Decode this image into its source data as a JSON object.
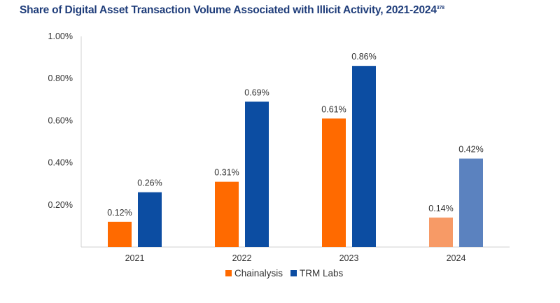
{
  "chart_data": {
    "type": "bar",
    "title": "Share of Digital Asset Transaction Volume Associated with Illicit Activity, 2021-2024",
    "title_footnote": "378",
    "categories": [
      "2021",
      "2022",
      "2023",
      "2024"
    ],
    "series": [
      {
        "name": "Chainalysis",
        "color": "#ff6a00",
        "point_colors": [
          "#ff6a00",
          "#ff6a00",
          "#ff6a00",
          "#f79a66"
        ],
        "values": [
          0.12,
          0.31,
          0.61,
          0.14
        ],
        "labels": [
          "0.12%",
          "0.31%",
          "0.61%",
          "0.14%"
        ]
      },
      {
        "name": "TRM Labs",
        "color": "#0c4da2",
        "point_colors": [
          "#0c4da2",
          "#0c4da2",
          "#0c4da2",
          "#5b82bf"
        ],
        "values": [
          0.26,
          0.69,
          0.86,
          0.42
        ],
        "labels": [
          "0.26%",
          "0.69%",
          "0.86%",
          "0.42%"
        ]
      }
    ],
    "ylim": [
      0,
      1.0
    ],
    "yticks": [
      0.2,
      0.4,
      0.6,
      0.8,
      1.0
    ],
    "ytick_labels": [
      "0.20%",
      "0.40%",
      "0.60%",
      "0.80%",
      "1.00%"
    ],
    "xlabel": "",
    "ylabel": "",
    "grid": false,
    "legend_position": "bottom"
  }
}
